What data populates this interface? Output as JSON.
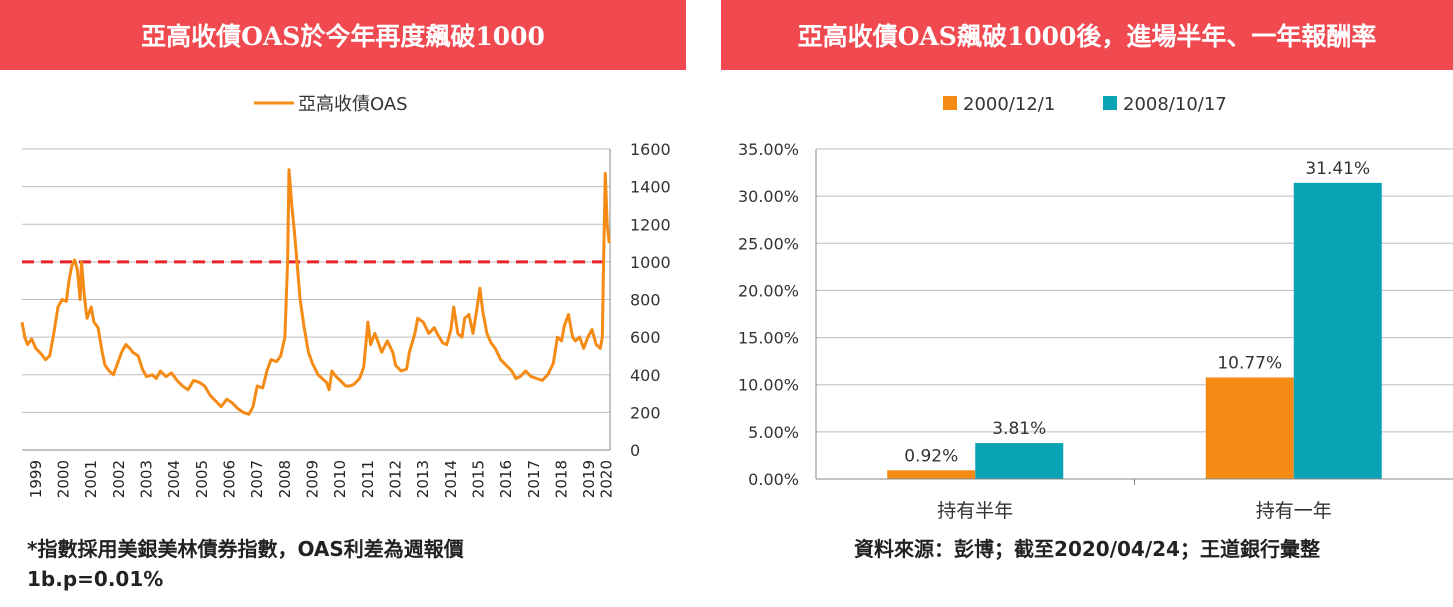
{
  "left": {
    "title": "亞高收債OAS於今年再度飆破1000",
    "chart_data": {
      "type": "line",
      "series": [
        {
          "name": "亞高收債OAS",
          "color": "#f58a14",
          "points": [
            [
              1999.0,
              680
            ],
            [
              1999.1,
              600
            ],
            [
              1999.2,
              560
            ],
            [
              1999.35,
              590
            ],
            [
              1999.5,
              540
            ],
            [
              1999.7,
              510
            ],
            [
              1999.85,
              480
            ],
            [
              2000.0,
              500
            ],
            [
              2000.15,
              620
            ],
            [
              2000.3,
              760
            ],
            [
              2000.45,
              800
            ],
            [
              2000.6,
              790
            ],
            [
              2000.7,
              900
            ],
            [
              2000.8,
              980
            ],
            [
              2000.9,
              1010
            ],
            [
              2001.0,
              960
            ],
            [
              2001.1,
              800
            ],
            [
              2001.15,
              1000
            ],
            [
              2001.25,
              820
            ],
            [
              2001.35,
              700
            ],
            [
              2001.5,
              760
            ],
            [
              2001.6,
              680
            ],
            [
              2001.75,
              650
            ],
            [
              2001.9,
              520
            ],
            [
              2002.0,
              450
            ],
            [
              2002.15,
              420
            ],
            [
              2002.3,
              400
            ],
            [
              2002.45,
              460
            ],
            [
              2002.6,
              520
            ],
            [
              2002.75,
              560
            ],
            [
              2002.9,
              540
            ],
            [
              2003.0,
              520
            ],
            [
              2003.2,
              500
            ],
            [
              2003.35,
              430
            ],
            [
              2003.5,
              390
            ],
            [
              2003.7,
              400
            ],
            [
              2003.85,
              380
            ],
            [
              2004.0,
              420
            ],
            [
              2004.2,
              390
            ],
            [
              2004.4,
              410
            ],
            [
              2004.6,
              370
            ],
            [
              2004.8,
              340
            ],
            [
              2005.0,
              320
            ],
            [
              2005.2,
              370
            ],
            [
              2005.4,
              360
            ],
            [
              2005.6,
              340
            ],
            [
              2005.8,
              290
            ],
            [
              2006.0,
              260
            ],
            [
              2006.2,
              230
            ],
            [
              2006.4,
              270
            ],
            [
              2006.6,
              250
            ],
            [
              2006.8,
              220
            ],
            [
              2007.0,
              200
            ],
            [
              2007.2,
              190
            ],
            [
              2007.35,
              230
            ],
            [
              2007.5,
              340
            ],
            [
              2007.7,
              330
            ],
            [
              2007.85,
              420
            ],
            [
              2008.0,
              480
            ],
            [
              2008.2,
              470
            ],
            [
              2008.35,
              500
            ],
            [
              2008.5,
              600
            ],
            [
              2008.6,
              1000
            ],
            [
              2008.65,
              1490
            ],
            [
              2008.75,
              1300
            ],
            [
              2008.85,
              1150
            ],
            [
              2008.95,
              980
            ],
            [
              2009.05,
              800
            ],
            [
              2009.2,
              650
            ],
            [
              2009.35,
              520
            ],
            [
              2009.5,
              460
            ],
            [
              2009.7,
              400
            ],
            [
              2009.85,
              380
            ],
            [
              2010.0,
              360
            ],
            [
              2010.1,
              320
            ],
            [
              2010.2,
              420
            ],
            [
              2010.35,
              390
            ],
            [
              2010.5,
              370
            ],
            [
              2010.7,
              340
            ],
            [
              2010.85,
              340
            ],
            [
              2011.0,
              350
            ],
            [
              2011.2,
              380
            ],
            [
              2011.35,
              440
            ],
            [
              2011.5,
              680
            ],
            [
              2011.6,
              560
            ],
            [
              2011.75,
              620
            ],
            [
              2011.9,
              560
            ],
            [
              2012.0,
              520
            ],
            [
              2012.2,
              580
            ],
            [
              2012.4,
              520
            ],
            [
              2012.5,
              450
            ],
            [
              2012.7,
              420
            ],
            [
              2012.9,
              430
            ],
            [
              2013.0,
              520
            ],
            [
              2013.2,
              620
            ],
            [
              2013.3,
              700
            ],
            [
              2013.5,
              680
            ],
            [
              2013.7,
              620
            ],
            [
              2013.9,
              650
            ],
            [
              2014.0,
              620
            ],
            [
              2014.2,
              570
            ],
            [
              2014.35,
              560
            ],
            [
              2014.5,
              640
            ],
            [
              2014.6,
              760
            ],
            [
              2014.75,
              620
            ],
            [
              2014.9,
              600
            ],
            [
              2015.0,
              700
            ],
            [
              2015.15,
              720
            ],
            [
              2015.3,
              620
            ],
            [
              2015.45,
              760
            ],
            [
              2015.55,
              860
            ],
            [
              2015.65,
              740
            ],
            [
              2015.8,
              620
            ],
            [
              2015.95,
              570
            ],
            [
              2016.1,
              540
            ],
            [
              2016.3,
              480
            ],
            [
              2016.5,
              450
            ],
            [
              2016.7,
              420
            ],
            [
              2016.85,
              380
            ],
            [
              2017.0,
              390
            ],
            [
              2017.2,
              420
            ],
            [
              2017.4,
              390
            ],
            [
              2017.6,
              380
            ],
            [
              2017.8,
              370
            ],
            [
              2018.0,
              400
            ],
            [
              2018.2,
              460
            ],
            [
              2018.35,
              600
            ],
            [
              2018.5,
              580
            ],
            [
              2018.6,
              660
            ],
            [
              2018.75,
              720
            ],
            [
              2018.9,
              600
            ],
            [
              2019.0,
              580
            ],
            [
              2019.15,
              600
            ],
            [
              2019.3,
              540
            ],
            [
              2019.45,
              600
            ],
            [
              2019.6,
              640
            ],
            [
              2019.75,
              560
            ],
            [
              2019.9,
              540
            ],
            [
              2019.97,
              600
            ],
            [
              2020.02,
              1000
            ],
            [
              2020.08,
              1470
            ],
            [
              2020.15,
              1200
            ],
            [
              2020.22,
              1100
            ]
          ]
        }
      ],
      "xlim": [
        1999.0,
        2020.25
      ],
      "ylim": [
        0,
        1600
      ],
      "yticks": [
        "0",
        "200",
        "400",
        "600",
        "800",
        "1000",
        "1200",
        "1400",
        "1600"
      ],
      "xticks": [
        "1999",
        "2000",
        "2001",
        "2002",
        "2003",
        "2004",
        "2005",
        "2006",
        "2007",
        "2008",
        "2009",
        "2010",
        "2011",
        "2012",
        "2013",
        "2014",
        "2015",
        "2016",
        "2017",
        "2018",
        "2019",
        "2020"
      ],
      "reference_line": {
        "value": 1000,
        "color": "#e8232a",
        "style": "dashed"
      },
      "grid": true,
      "legend": "top-center",
      "y_axis_side": "right"
    },
    "note_line1": "*指數採用美銀美林債券指數，OAS利差為週報價",
    "note_line2": "1b.p=0.01%"
  },
  "right": {
    "title": "亞高收債OAS飆破1000後，進場半年、一年報酬率",
    "chart_data": {
      "type": "bar",
      "categories": [
        "持有半年",
        "持有一年"
      ],
      "series": [
        {
          "name": "2000/12/1",
          "color": "#f58a14",
          "values": [
            0.92,
            10.77
          ],
          "labels": [
            "0.92%",
            "10.77%"
          ]
        },
        {
          "name": "2008/10/17",
          "color": "#0aa3b5",
          "values": [
            3.81,
            31.41
          ],
          "labels": [
            "3.81%",
            "31.41%"
          ]
        }
      ],
      "ylim": [
        0,
        35
      ],
      "yticks": [
        "0.00%",
        "5.00%",
        "10.00%",
        "15.00%",
        "20.00%",
        "25.00%",
        "30.00%",
        "35.00%"
      ],
      "grid": true,
      "legend": "top-center"
    },
    "source": "資料來源：彭博；截至2020/04/24；王道銀行彙整"
  }
}
